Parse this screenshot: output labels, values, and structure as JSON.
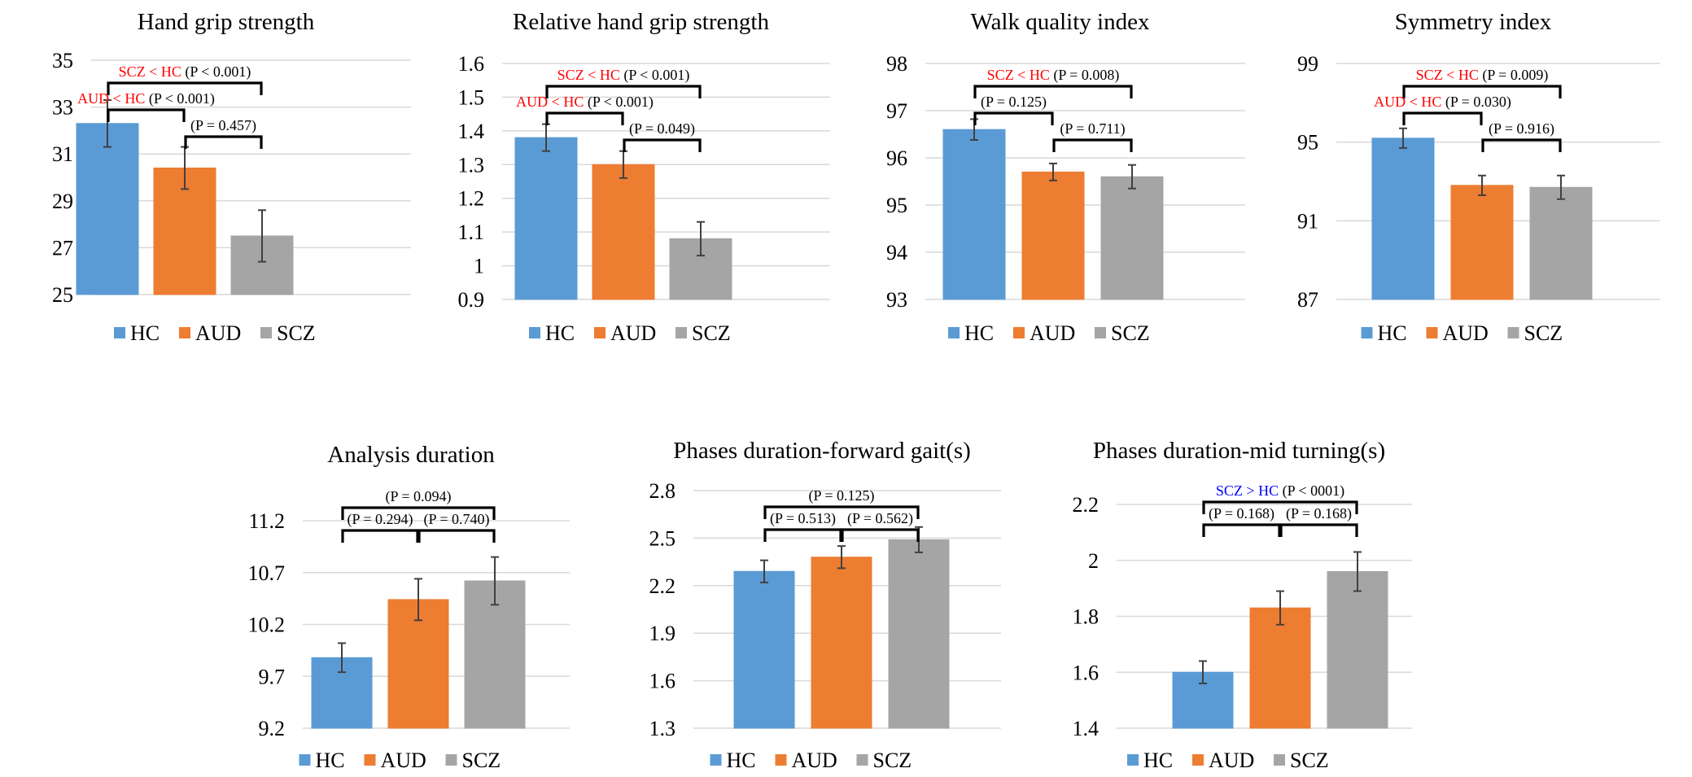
{
  "colors": {
    "HC": "#5B9BD5",
    "AUD": "#ED7D31",
    "SCZ": "#A5A5A5",
    "grid": "#d9d9d9",
    "sig_red": "#FF0000",
    "sig_blue": "#0000FF",
    "text": "#000000",
    "error_bar": "#404040"
  },
  "legend": [
    "HC",
    "AUD",
    "SCZ"
  ],
  "chart_data": [
    {
      "type": "bar",
      "title": "Hand grip strength",
      "categories": [
        "HC",
        "AUD",
        "SCZ"
      ],
      "values": [
        32.3,
        30.4,
        27.5
      ],
      "errors": [
        1.0,
        0.9,
        1.1
      ],
      "yticks": [
        "25",
        "27",
        "29",
        "31",
        "33",
        "35"
      ],
      "ylim": [
        25,
        35
      ],
      "grid": true,
      "legend_position": "bottom",
      "comparisons": [
        {
          "from": 0,
          "to": 2,
          "level": 3,
          "sig": "SCZ < HC",
          "p": "(P < 0.001)",
          "sig_color": "red"
        },
        {
          "from": 0,
          "to": 1,
          "level": 2,
          "sig": "AUD < HC",
          "p": "(P < 0.001)",
          "sig_color": "red"
        },
        {
          "from": 1,
          "to": 2,
          "level": 1,
          "sig": "",
          "p": "(P = 0.457)",
          "sig_color": ""
        }
      ]
    },
    {
      "type": "bar",
      "title": "Relative hand grip strength",
      "categories": [
        "HC",
        "AUD",
        "SCZ"
      ],
      "values": [
        1.38,
        1.3,
        1.08
      ],
      "errors": [
        0.04,
        0.04,
        0.05
      ],
      "yticks": [
        "0.9",
        "1",
        "1.1",
        "1.2",
        "1.3",
        "1.4",
        "1.5",
        "1.6"
      ],
      "ylim": [
        0.9,
        1.6
      ],
      "grid": true,
      "legend_position": "bottom",
      "comparisons": [
        {
          "from": 0,
          "to": 2,
          "level": 3,
          "sig": "SCZ < HC",
          "p": "(P < 0.001)",
          "sig_color": "red"
        },
        {
          "from": 0,
          "to": 1,
          "level": 2,
          "sig": "AUD < HC",
          "p": "(P < 0.001)",
          "sig_color": "red"
        },
        {
          "from": 1,
          "to": 2,
          "level": 1,
          "sig": "",
          "p": "(P = 0.049)",
          "sig_color": ""
        }
      ]
    },
    {
      "type": "bar",
      "title": "Walk quality index",
      "categories": [
        "HC",
        "AUD",
        "SCZ"
      ],
      "values": [
        96.6,
        95.7,
        95.6
      ],
      "errors": [
        0.22,
        0.18,
        0.25
      ],
      "yticks": [
        "93",
        "94",
        "95",
        "96",
        "97",
        "98"
      ],
      "ylim": [
        93,
        98
      ],
      "grid": true,
      "legend_position": "bottom",
      "comparisons": [
        {
          "from": 0,
          "to": 2,
          "level": 3,
          "sig": "SCZ < HC",
          "p": "(P = 0.008)",
          "sig_color": "red"
        },
        {
          "from": 0,
          "to": 1,
          "level": 2,
          "sig": "",
          "p": "(P = 0.125)",
          "sig_color": ""
        },
        {
          "from": 1,
          "to": 2,
          "level": 1,
          "sig": "",
          "p": "(P = 0.711)",
          "sig_color": ""
        }
      ]
    },
    {
      "type": "bar",
      "title": "Symmetry index",
      "categories": [
        "HC",
        "AUD",
        "SCZ"
      ],
      "values": [
        95.2,
        92.8,
        92.7
      ],
      "errors": [
        0.5,
        0.5,
        0.6
      ],
      "yticks": [
        "87",
        "91",
        "95",
        "99"
      ],
      "ylim": [
        87,
        99
      ],
      "grid": true,
      "legend_position": "bottom",
      "comparisons": [
        {
          "from": 0,
          "to": 2,
          "level": 3,
          "sig": "SCZ < HC",
          "p": "(P = 0.009)",
          "sig_color": "red"
        },
        {
          "from": 0,
          "to": 1,
          "level": 2,
          "sig": "AUD < HC",
          "p": "(P = 0.030)",
          "sig_color": "red"
        },
        {
          "from": 1,
          "to": 2,
          "level": 1,
          "sig": "",
          "p": "(P = 0.916)",
          "sig_color": ""
        }
      ]
    },
    {
      "type": "bar",
      "title": "Analysis duration",
      "categories": [
        "HC",
        "AUD",
        "SCZ"
      ],
      "values": [
        9.88,
        10.44,
        10.62
      ],
      "errors": [
        0.14,
        0.2,
        0.23
      ],
      "yticks": [
        "9.2",
        "9.7",
        "10.2",
        "10.7",
        "11.2"
      ],
      "ylim": [
        9.2,
        11.2
      ],
      "grid": true,
      "legend_position": "bottom",
      "comparisons": [
        {
          "from": 0,
          "to": 2,
          "level": 2,
          "sig": "",
          "p": "(P = 0.094)",
          "sig_color": ""
        },
        {
          "from": 0,
          "to": 1,
          "level": 1,
          "sig": "",
          "p": "(P = 0.294)",
          "sig_color": ""
        },
        {
          "from": 1,
          "to": 2,
          "level": 1,
          "sig": "",
          "p": "(P = 0.740)",
          "sig_color": ""
        }
      ]
    },
    {
      "type": "bar",
      "title": "Phases duration-forward gait(s)",
      "categories": [
        "HC",
        "AUD",
        "SCZ"
      ],
      "values": [
        2.29,
        2.38,
        2.49
      ],
      "errors": [
        0.07,
        0.07,
        0.08
      ],
      "yticks": [
        "1.3",
        "1.6",
        "1.9",
        "2.2",
        "2.5",
        "2.8"
      ],
      "ylim": [
        1.3,
        2.8
      ],
      "grid": true,
      "legend_position": "bottom",
      "comparisons": [
        {
          "from": 0,
          "to": 2,
          "level": 2,
          "sig": "",
          "p": "(P = 0.125)",
          "sig_color": ""
        },
        {
          "from": 0,
          "to": 1,
          "level": 1,
          "sig": "",
          "p": "(P = 0.513)",
          "sig_color": ""
        },
        {
          "from": 1,
          "to": 2,
          "level": 1,
          "sig": "",
          "p": "(P = 0.562)",
          "sig_color": ""
        }
      ]
    },
    {
      "type": "bar",
      "title": "Phases duration-mid turning(s)",
      "categories": [
        "HC",
        "AUD",
        "SCZ"
      ],
      "values": [
        1.6,
        1.83,
        1.96
      ],
      "errors": [
        0.04,
        0.06,
        0.07
      ],
      "yticks": [
        "1.4",
        "1.6",
        "1.8",
        "2",
        "2.2"
      ],
      "ylim": [
        1.4,
        2.2
      ],
      "grid": true,
      "legend_position": "bottom",
      "comparisons": [
        {
          "from": 0,
          "to": 2,
          "level": 2,
          "sig": "SCZ > HC",
          "p": "(P < 0001)",
          "sig_color": "blue"
        },
        {
          "from": 0,
          "to": 1,
          "level": 1,
          "sig": "",
          "p": "(P = 0.168)",
          "sig_color": ""
        },
        {
          "from": 1,
          "to": 2,
          "level": 1,
          "sig": "",
          "p": "(P = 0.168)",
          "sig_color": ""
        }
      ]
    }
  ]
}
